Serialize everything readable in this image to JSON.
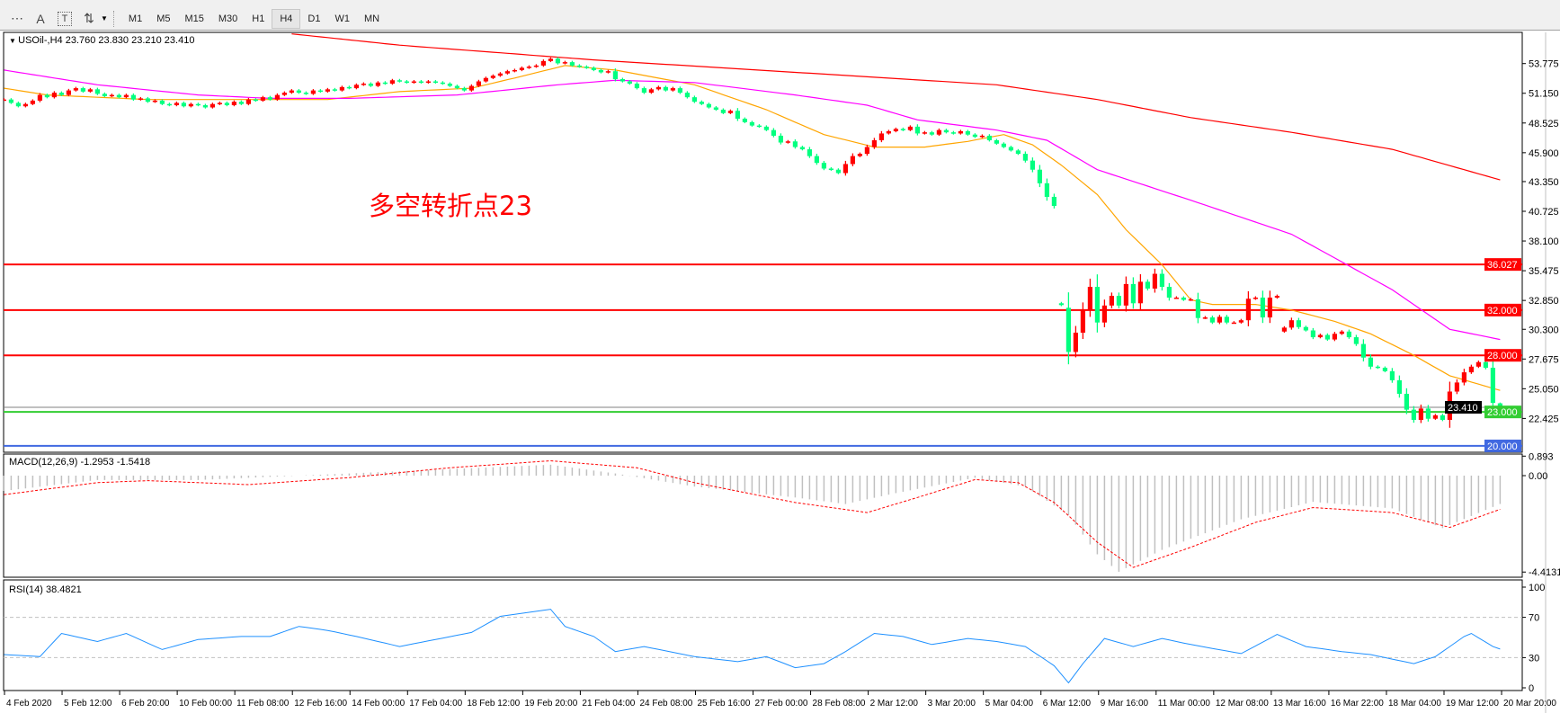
{
  "toolbar": {
    "tools": [
      {
        "icon": "grid-lines-icon",
        "glyph": "⋯"
      },
      {
        "icon": "text-icon",
        "glyph": "A"
      },
      {
        "icon": "text-label-icon",
        "glyph": "T"
      },
      {
        "icon": "arrows-icon",
        "glyph": "⇅"
      }
    ],
    "timeframes": [
      "M1",
      "M5",
      "M15",
      "M30",
      "H1",
      "H4",
      "D1",
      "W1",
      "MN"
    ],
    "active_timeframe": "H4"
  },
  "chart": {
    "symbol_header": "USOil-,H4  23.760 23.830 23.210 23.410",
    "annotation": "多空转折点23",
    "colors": {
      "bull": "#ff0000",
      "bear": "#00ff7f",
      "ma_fast": "#ffa500",
      "ma_mid": "#ff00ff",
      "ma_slow": "#ff0000",
      "level_red": "#ff0000",
      "level_green": "#32cd32",
      "level_blue": "#4169e1",
      "macd_hist": "#c0c0c0",
      "macd_signal": "#ff0000",
      "rsi": "#1e90ff"
    }
  },
  "chart_data": {
    "type": "candlestick",
    "symbol": "USOil-",
    "timeframe": "H4",
    "last_bar": {
      "open": 23.76,
      "high": 23.83,
      "low": 23.21,
      "close": 23.41
    },
    "x_tick_labels": [
      "4 Feb 2020",
      "5 Feb 12:00",
      "6 Feb 20:00",
      "10 Feb 00:00",
      "11 Feb 08:00",
      "12 Feb 16:00",
      "14 Feb 00:00",
      "17 Feb 04:00",
      "18 Feb 12:00",
      "19 Feb 20:00",
      "21 Feb 04:00",
      "24 Feb 08:00",
      "25 Feb 16:00",
      "27 Feb 00:00",
      "28 Feb 08:00",
      "2 Mar 12:00",
      "3 Mar 20:00",
      "5 Mar 04:00",
      "6 Mar 12:00",
      "9 Mar 16:00",
      "11 Mar 00:00",
      "12 Mar 08:00",
      "13 Mar 16:00",
      "16 Mar 22:00",
      "18 Mar 04:00",
      "19 Mar 12:00",
      "20 Mar 20:00"
    ],
    "y_tick_labels": [
      "53.775",
      "51.150",
      "48.525",
      "45.900",
      "43.350",
      "40.725",
      "38.100",
      "35.475",
      "32.850",
      "30.300",
      "27.675",
      "25.050",
      "22.425"
    ],
    "ylim": [
      19.8,
      56.2
    ],
    "close": [
      50.6,
      50.3,
      50.0,
      50.2,
      50.5,
      51.0,
      50.8,
      51.2,
      51.0,
      51.4,
      51.6,
      51.3,
      51.5,
      51.1,
      50.9,
      51.0,
      50.8,
      51.0,
      50.6,
      50.7,
      50.4,
      50.5,
      50.2,
      50.1,
      50.3,
      50.0,
      50.2,
      50.1,
      49.9,
      50.2,
      50.3,
      50.1,
      50.4,
      50.2,
      50.6,
      50.5,
      50.8,
      50.6,
      51.0,
      51.2,
      51.4,
      51.2,
      51.1,
      51.4,
      51.3,
      51.5,
      51.4,
      51.7,
      51.6,
      51.9,
      52.0,
      51.8,
      52.1,
      52.0,
      52.3,
      52.2,
      52.1,
      52.2,
      52.1,
      52.2,
      52.1,
      52.0,
      51.8,
      51.6,
      51.4,
      51.8,
      52.2,
      52.5,
      52.7,
      52.9,
      53.1,
      53.2,
      53.4,
      53.5,
      53.6,
      54.0,
      54.2,
      53.8,
      53.9,
      53.6,
      53.5,
      53.4,
      53.2,
      53.0,
      53.1,
      52.4,
      52.2,
      52.0,
      51.6,
      51.2,
      51.5,
      51.7,
      51.4,
      51.6,
      51.2,
      50.8,
      50.4,
      50.2,
      49.9,
      49.7,
      49.4,
      49.6,
      48.9,
      48.6,
      48.3,
      48.2,
      47.9,
      47.4,
      46.8,
      46.9,
      46.4,
      46.2,
      45.6,
      45.0,
      44.5,
      44.4,
      44.1,
      44.9,
      45.6,
      45.8,
      46.4,
      47.0,
      47.6,
      47.8,
      48.0,
      47.9,
      48.2,
      47.6,
      47.7,
      47.5,
      47.9,
      47.7,
      47.6,
      47.8,
      47.5,
      47.3,
      47.4,
      47.0,
      46.7,
      46.4,
      46.1,
      45.8,
      45.2,
      44.4,
      43.2,
      42.0,
      41.2,
      32.44,
      28.3,
      30.0,
      31.98,
      34.05,
      30.9,
      32.4,
      33.25,
      32.4,
      34.3,
      32.6,
      34.5,
      33.9,
      35.2,
      34.05,
      33.1,
      33.1,
      32.9,
      32.95,
      31.3,
      31.35,
      30.9,
      31.4,
      30.9,
      30.9,
      31.1,
      33.0,
      33.1,
      31.35,
      33.1,
      33.25,
      30.45,
      31.1,
      30.5,
      30.2,
      29.6,
      29.8,
      29.4,
      29.9,
      30.1,
      29.6,
      29.0,
      27.8,
      27.0,
      26.9,
      26.6,
      25.8,
      24.6,
      23.2,
      22.3,
      23.3,
      22.4,
      22.7,
      22.3,
      24.8,
      25.6,
      26.5,
      27.0,
      27.4,
      26.9,
      23.8,
      23.41
    ],
    "open_overrides": {
      "147": 32.6,
      "148": 32.2,
      "178": 30.1,
      "208": 23.76
    },
    "moving_averages": [
      {
        "color": "#ffa500",
        "points": [
          [
            0,
            51.6
          ],
          [
            6,
            51.0
          ],
          [
            20,
            50.6
          ],
          [
            34,
            50.6
          ],
          [
            45,
            50.6
          ],
          [
            55,
            51.3
          ],
          [
            65,
            51.6
          ],
          [
            71,
            52.5
          ],
          [
            78,
            53.6
          ],
          [
            85,
            53.2
          ],
          [
            96,
            51.9
          ],
          [
            106,
            49.7
          ],
          [
            114,
            47.5
          ],
          [
            121,
            46.4
          ],
          [
            128,
            46.4
          ],
          [
            134,
            46.9
          ],
          [
            139,
            47.5
          ],
          [
            143,
            46.6
          ],
          [
            147,
            44.8
          ],
          [
            152,
            42.2
          ],
          [
            156,
            39.1
          ],
          [
            161,
            36.0
          ],
          [
            165,
            32.9
          ],
          [
            168,
            32.5
          ],
          [
            174,
            32.5
          ],
          [
            179,
            32.0
          ],
          [
            185,
            31.0
          ],
          [
            190,
            29.9
          ],
          [
            196,
            28.0
          ],
          [
            201,
            26.2
          ],
          [
            208,
            24.9
          ]
        ]
      },
      {
        "color": "#ff00ff",
        "points": [
          [
            0,
            53.2
          ],
          [
            13,
            51.9
          ],
          [
            27,
            51.0
          ],
          [
            37,
            50.7
          ],
          [
            48,
            50.7
          ],
          [
            63,
            51.0
          ],
          [
            77,
            51.9
          ],
          [
            85,
            52.3
          ],
          [
            96,
            52.1
          ],
          [
            110,
            51.0
          ],
          [
            120,
            50.1
          ],
          [
            127,
            48.8
          ],
          [
            138,
            47.9
          ],
          [
            145,
            47.0
          ],
          [
            152,
            44.4
          ],
          [
            165,
            41.7
          ],
          [
            179,
            38.7
          ],
          [
            193,
            33.8
          ],
          [
            201,
            30.3
          ],
          [
            208,
            29.4
          ]
        ]
      },
      {
        "color": "#ff0000",
        "points": [
          [
            40,
            56.4
          ],
          [
            55,
            55.4
          ],
          [
            82,
            54.1
          ],
          [
            110,
            53.0
          ],
          [
            138,
            51.9
          ],
          [
            152,
            50.6
          ],
          [
            165,
            49.0
          ],
          [
            179,
            47.7
          ],
          [
            193,
            46.2
          ],
          [
            208,
            43.5
          ]
        ]
      }
    ],
    "levels": [
      {
        "price": 36.027,
        "label": "36.027",
        "color": "#ff0000"
      },
      {
        "price": 32.0,
        "label": "32.000",
        "color": "#ff0000"
      },
      {
        "price": 28.0,
        "label": "28.000",
        "color": "#ff0000"
      },
      {
        "price": 23.0,
        "label": "23.000",
        "color": "#32cd32"
      },
      {
        "price": 20.0,
        "label": "20.000",
        "color": "#4169e1"
      }
    ],
    "current_price": {
      "price": 23.41,
      "label": "23.410"
    },
    "macd": {
      "title": "MACD(12,26,9) -1.2953 -1.5418",
      "y_tick_labels": [
        "0.893",
        "0.00",
        "-4.4131"
      ],
      "ylim": [
        -4.4131,
        0.893
      ],
      "main_points": [
        [
          0,
          -0.7
        ],
        [
          13,
          -0.2
        ],
        [
          27,
          -0.2
        ],
        [
          41,
          0.0
        ],
        [
          55,
          0.2
        ],
        [
          69,
          0.4
        ],
        [
          76,
          0.5
        ],
        [
          85,
          0.1
        ],
        [
          96,
          -0.5
        ],
        [
          110,
          -1.0
        ],
        [
          117,
          -1.3
        ],
        [
          124,
          -0.8
        ],
        [
          135,
          -0.1
        ],
        [
          142,
          -0.5
        ],
        [
          148,
          -1.8
        ],
        [
          152,
          -3.6
        ],
        [
          155,
          -4.4
        ],
        [
          161,
          -3.4
        ],
        [
          172,
          -2.0
        ],
        [
          182,
          -1.2
        ],
        [
          193,
          -1.5
        ],
        [
          200,
          -2.4
        ],
        [
          208,
          -1.2953
        ]
      ],
      "signal_points": [
        [
          0,
          -0.87
        ],
        [
          13,
          -0.32
        ],
        [
          20,
          -0.23
        ],
        [
          34,
          -0.41
        ],
        [
          48,
          -0.09
        ],
        [
          62,
          0.36
        ],
        [
          76,
          0.68
        ],
        [
          88,
          0.36
        ],
        [
          96,
          -0.32
        ],
        [
          110,
          -1.23
        ],
        [
          120,
          -1.69
        ],
        [
          127,
          -1.0
        ],
        [
          135,
          -0.18
        ],
        [
          141,
          -0.32
        ],
        [
          146,
          -1.23
        ],
        [
          152,
          -3.05
        ],
        [
          157,
          -4.2
        ],
        [
          165,
          -3.28
        ],
        [
          174,
          -2.14
        ],
        [
          182,
          -1.46
        ],
        [
          193,
          -1.69
        ],
        [
          201,
          -2.37
        ],
        [
          208,
          -1.5418
        ]
      ]
    },
    "rsi": {
      "title": "RSI(14) 38.4821",
      "y_tick_labels": [
        "100",
        "70",
        "30",
        "0"
      ],
      "ylim": [
        0,
        100
      ],
      "levels": [
        70,
        30
      ],
      "points": [
        [
          0,
          33
        ],
        [
          5,
          31
        ],
        [
          8,
          54
        ],
        [
          13,
          46
        ],
        [
          17,
          54
        ],
        [
          22,
          38
        ],
        [
          27,
          48
        ],
        [
          33,
          51
        ],
        [
          37,
          51
        ],
        [
          41,
          61
        ],
        [
          45,
          57
        ],
        [
          49,
          51
        ],
        [
          55,
          41
        ],
        [
          60,
          48
        ],
        [
          65,
          55
        ],
        [
          69,
          71
        ],
        [
          73,
          75
        ],
        [
          76,
          78
        ],
        [
          78,
          61
        ],
        [
          82,
          51
        ],
        [
          85,
          36
        ],
        [
          89,
          41
        ],
        [
          96,
          31
        ],
        [
          102,
          26
        ],
        [
          106,
          31
        ],
        [
          110,
          20
        ],
        [
          114,
          24
        ],
        [
          117,
          36
        ],
        [
          121,
          54
        ],
        [
          125,
          51
        ],
        [
          129,
          43
        ],
        [
          134,
          49
        ],
        [
          138,
          46
        ],
        [
          142,
          41
        ],
        [
          146,
          22
        ],
        [
          148,
          5
        ],
        [
          150,
          24
        ],
        [
          153,
          49
        ],
        [
          157,
          41
        ],
        [
          161,
          49
        ],
        [
          165,
          43
        ],
        [
          172,
          34
        ],
        [
          177,
          53
        ],
        [
          181,
          41
        ],
        [
          186,
          36
        ],
        [
          190,
          33
        ],
        [
          196,
          24
        ],
        [
          199,
          31
        ],
        [
          203,
          51
        ],
        [
          204,
          54
        ],
        [
          207,
          41
        ],
        [
          208,
          38.48
        ]
      ]
    }
  }
}
